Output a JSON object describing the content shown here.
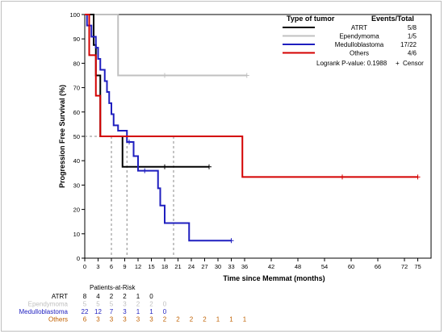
{
  "chart_data": {
    "type": "line",
    "step": true,
    "xlabel": "Time since Memmat (months)",
    "ylabel": "Progression Free Survival (%)",
    "xlim": [
      0,
      78
    ],
    "ylim": [
      0,
      100
    ],
    "xticks": [
      0,
      3,
      6,
      9,
      12,
      15,
      18,
      21,
      24,
      27,
      30,
      33,
      36,
      42,
      48,
      54,
      60,
      66,
      72,
      75
    ],
    "yticks": [
      0,
      10,
      20,
      30,
      40,
      50,
      60,
      70,
      80,
      90,
      100
    ],
    "grid": false,
    "reference_lines": {
      "horizontal_y": 50,
      "vertical_x": [
        6,
        9.5,
        20
      ],
      "style": "dashed"
    },
    "legend": {
      "placement": "top-right",
      "header_left": "Type of tumor",
      "header_right": "Events/Total",
      "pvalue_text": "Logrank P-value: 0.1988",
      "censor_label": "Censor",
      "censor_symbol": "+"
    },
    "series": [
      {
        "name": "ATRT",
        "events": "5/8",
        "color": "#000000",
        "points": [
          [
            0,
            100
          ],
          [
            2,
            87.5
          ],
          [
            2.5,
            75
          ],
          [
            3.5,
            50
          ],
          [
            8.5,
            37.5
          ],
          [
            28,
            37.5
          ]
        ],
        "censor": [
          [
            18,
            37.5
          ],
          [
            28,
            37.5
          ]
        ]
      },
      {
        "name": "Ependymoma",
        "events": "1/5",
        "color": "#c0c0c0",
        "points": [
          [
            0,
            100
          ],
          [
            7.5,
            75
          ],
          [
            36.5,
            75
          ]
        ],
        "censor": [
          [
            18,
            75
          ],
          [
            36.5,
            75
          ]
        ]
      },
      {
        "name": "Medulloblastoma",
        "events": "17/22",
        "color": "#1f1fbf",
        "points": [
          [
            0,
            100
          ],
          [
            0.5,
            95.5
          ],
          [
            1.5,
            90.9
          ],
          [
            2.5,
            86.4
          ],
          [
            3,
            81.8
          ],
          [
            3.5,
            77.3
          ],
          [
            4.5,
            72.7
          ],
          [
            5,
            68.2
          ],
          [
            5.5,
            63.6
          ],
          [
            6,
            59.1
          ],
          [
            6.5,
            54.5
          ],
          [
            7.5,
            52.3
          ],
          [
            9.5,
            47.7
          ],
          [
            11,
            41.9
          ],
          [
            12,
            35.9
          ],
          [
            15,
            35.9
          ],
          [
            16.5,
            28.7
          ],
          [
            17,
            21.6
          ],
          [
            18,
            14.4
          ],
          [
            21.5,
            14.4
          ],
          [
            23.5,
            7.2
          ],
          [
            33,
            7.2
          ]
        ],
        "censor": [
          [
            10,
            47.7
          ],
          [
            13.5,
            35.9
          ],
          [
            33,
            7.2
          ]
        ]
      },
      {
        "name": "Others",
        "events": "4/6",
        "color": "#d40000",
        "points": [
          [
            0,
            100
          ],
          [
            1,
            83.3
          ],
          [
            2.5,
            66.7
          ],
          [
            3.5,
            50
          ],
          [
            35.5,
            33.3
          ],
          [
            75,
            33.3
          ]
        ],
        "censor": [
          [
            58,
            33.3
          ],
          [
            75,
            33.3
          ]
        ]
      }
    ],
    "risk_table": {
      "title": "Patients-at-Risk",
      "rows": [
        {
          "label": "ATRT",
          "color": "#000000",
          "values": [
            "8",
            "4",
            "2",
            "2",
            "1",
            "0"
          ]
        },
        {
          "label": "Ependymoma",
          "color": "#c0c0c0",
          "values": [
            "5",
            "5",
            "5",
            "3",
            "2",
            "2",
            "0"
          ]
        },
        {
          "label": "Medulloblastoma",
          "color": "#1f1fbf",
          "values": [
            "22",
            "12",
            "7",
            "3",
            "1",
            "1",
            "0"
          ]
        },
        {
          "label": "Others",
          "color": "#c06000",
          "values": [
            "6",
            "3",
            "3",
            "3",
            "3",
            "3",
            "2",
            "2",
            "2",
            "2",
            "1",
            "1",
            "1"
          ]
        }
      ]
    }
  }
}
